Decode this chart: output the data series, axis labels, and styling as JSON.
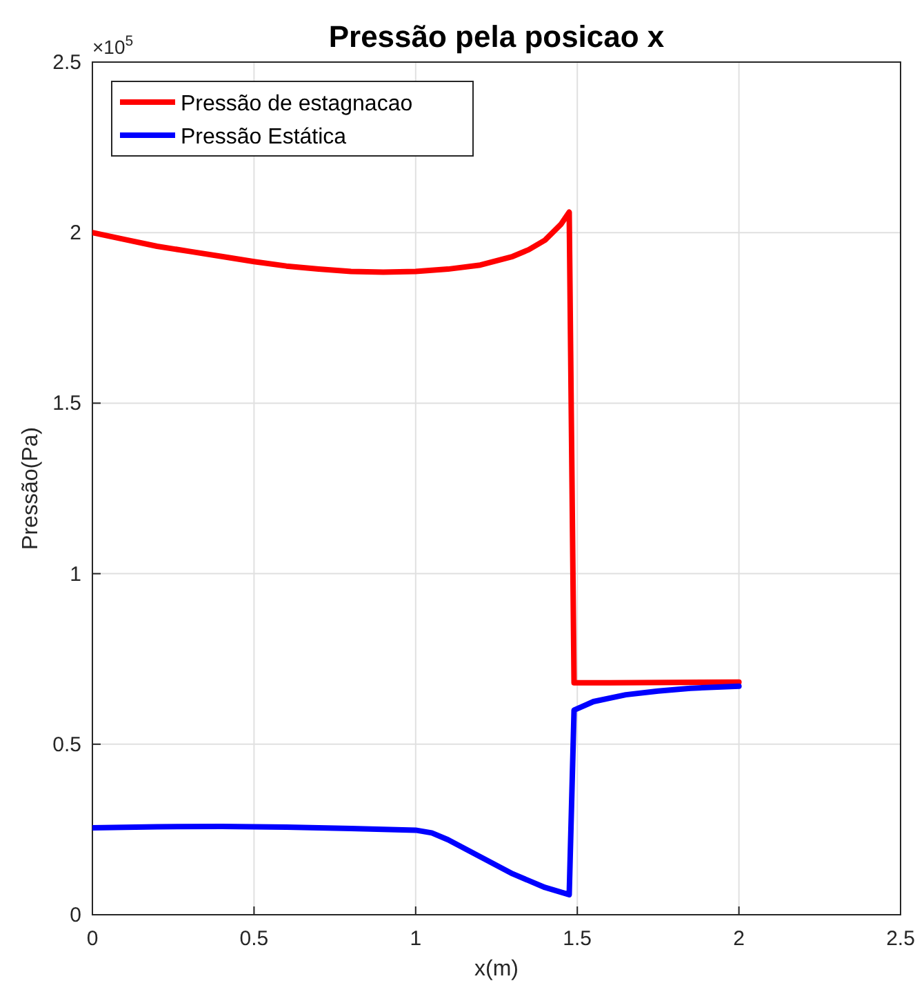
{
  "chart_data": {
    "type": "line",
    "title": "Pressão pela posicao x",
    "xlabel": "x(m)",
    "ylabel": "Pressão(Pa)",
    "annotations": [
      "×10$^{5}$"
    ],
    "xlim": [
      0,
      2.5
    ],
    "xticks": [
      0,
      0.5,
      1,
      1.5,
      2,
      2.5
    ],
    "ylim": [
      0,
      2.5
    ],
    "yticks": [
      0,
      0.5,
      1,
      1.5,
      2,
      2.5
    ],
    "grid": true,
    "legend": "top left",
    "line_style": "solid",
    "marker": "none",
    "series": [
      {
        "name": "Pressão de estagnacao",
        "color": "#ff0000",
        "x": [
          0,
          0.1,
          0.2,
          0.3,
          0.4,
          0.5,
          0.6,
          0.7,
          0.8,
          0.9,
          1.0,
          1.1,
          1.2,
          1.3,
          1.35,
          1.4,
          1.45,
          1.475,
          1.49,
          1.6,
          1.8,
          2.0
        ],
        "values": [
          2.0,
          1.98,
          1.96,
          1.945,
          1.93,
          1.915,
          1.902,
          1.893,
          1.886,
          1.884,
          1.886,
          1.893,
          1.905,
          1.93,
          1.95,
          1.978,
          2.025,
          2.06,
          0.68,
          0.68,
          0.681,
          0.682
        ]
      },
      {
        "name": "Pressão Estática",
        "color": "#0000ff",
        "x": [
          0,
          0.2,
          0.4,
          0.6,
          0.8,
          1.0,
          1.05,
          1.1,
          1.2,
          1.3,
          1.4,
          1.475,
          1.49,
          1.55,
          1.65,
          1.75,
          1.85,
          2.0
        ],
        "values": [
          0.255,
          0.258,
          0.259,
          0.257,
          0.253,
          0.248,
          0.24,
          0.22,
          0.17,
          0.12,
          0.08,
          0.059,
          0.6,
          0.625,
          0.645,
          0.656,
          0.664,
          0.67
        ]
      }
    ]
  }
}
